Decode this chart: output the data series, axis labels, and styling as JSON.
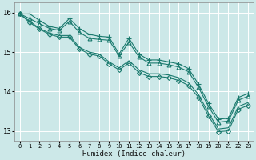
{
  "xlabel": "Humidex (Indice chaleur)",
  "xlim": [
    -0.5,
    23.5
  ],
  "ylim": [
    12.75,
    16.25
  ],
  "yticks": [
    13,
    14,
    15,
    16
  ],
  "xticks": [
    0,
    1,
    2,
    3,
    4,
    5,
    6,
    7,
    8,
    9,
    10,
    11,
    12,
    13,
    14,
    15,
    16,
    17,
    18,
    19,
    20,
    21,
    22,
    23
  ],
  "background_color": "#cce8e8",
  "grid_color": "#ffffff",
  "line_color": "#1a7a6e",
  "lines": [
    {
      "x": [
        0,
        1,
        2,
        3,
        4,
        5,
        6,
        7,
        8,
        9,
        10,
        11,
        12,
        13,
        14,
        15,
        16,
        17,
        18,
        19,
        20,
        21,
        22,
        23
      ],
      "y": [
        15.97,
        15.85,
        15.72,
        15.6,
        15.55,
        15.78,
        15.5,
        15.35,
        15.32,
        15.3,
        14.9,
        15.25,
        14.88,
        14.72,
        14.72,
        14.68,
        14.62,
        14.5,
        14.1,
        13.62,
        13.22,
        13.25,
        13.78,
        13.88
      ],
      "marker": "^",
      "markersize": 3.5,
      "lw": 0.8
    },
    {
      "x": [
        0,
        1,
        2,
        3,
        4,
        5,
        6,
        7,
        8,
        9,
        10,
        11,
        12,
        13,
        14,
        15,
        16,
        17,
        18,
        19,
        20,
        21,
        22,
        23
      ],
      "y": [
        15.97,
        15.78,
        15.6,
        15.48,
        15.42,
        15.42,
        15.12,
        15.0,
        14.95,
        14.75,
        14.6,
        14.78,
        14.55,
        14.45,
        14.45,
        14.42,
        14.35,
        14.22,
        13.92,
        13.45,
        13.05,
        13.08,
        13.62,
        13.72
      ],
      "marker": null,
      "markersize": 0,
      "lw": 0.8
    },
    {
      "x": [
        0,
        1,
        2,
        3,
        4,
        5,
        6,
        7,
        8,
        9,
        10,
        11,
        12,
        13,
        14,
        15,
        16,
        17,
        18,
        19,
        20,
        21,
        22,
        23
      ],
      "y": [
        15.97,
        15.75,
        15.58,
        15.45,
        15.38,
        15.38,
        15.08,
        14.95,
        14.9,
        14.7,
        14.55,
        14.72,
        14.48,
        14.38,
        14.38,
        14.35,
        14.28,
        14.15,
        13.85,
        13.38,
        12.98,
        13.0,
        13.55,
        13.65
      ],
      "marker": "D",
      "markersize": 3.0,
      "lw": 0.8
    },
    {
      "x": [
        0,
        1,
        2,
        3,
        4,
        5,
        6,
        7,
        8,
        9,
        10,
        11,
        12,
        13,
        14,
        15,
        16,
        17,
        18,
        19,
        20,
        21,
        22,
        23
      ],
      "y": [
        15.97,
        15.97,
        15.8,
        15.65,
        15.6,
        15.85,
        15.6,
        15.45,
        15.4,
        15.38,
        14.95,
        15.35,
        14.95,
        14.8,
        14.8,
        14.75,
        14.7,
        14.58,
        14.18,
        13.7,
        13.3,
        13.32,
        13.85,
        13.95
      ],
      "marker": "+",
      "markersize": 4.5,
      "lw": 0.8
    }
  ]
}
